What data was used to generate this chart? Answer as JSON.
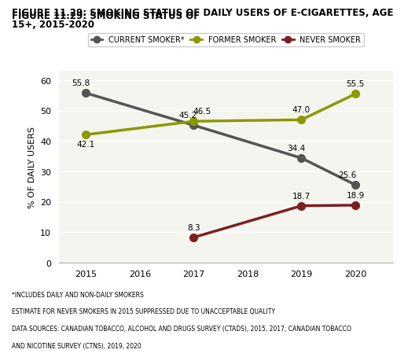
{
  "title_line1": "FIGURE 11.29: SMOKING STATUS OF ",
  "title_underline": "DAILY",
  "title_line2": " USERS OF E-CIGARETTES, AGE",
  "title_line3": "15+, 2015-2020",
  "current_smoker": {
    "x": [
      2015,
      2017,
      2019,
      2020
    ],
    "y": [
      55.8,
      45.2,
      34.4,
      25.6
    ],
    "color": "#555555",
    "label": "CURRENT SMOKER*"
  },
  "former_smoker": {
    "x": [
      2015,
      2017,
      2019,
      2020
    ],
    "y": [
      42.1,
      46.5,
      47.0,
      55.5
    ],
    "color": "#8b9900",
    "label": "FORMER SMOKER"
  },
  "never_smoker": {
    "x": [
      2017,
      2019,
      2020
    ],
    "y": [
      8.3,
      18.7,
      18.9
    ],
    "color": "#7b2020",
    "label": "NEVER SMOKER"
  },
  "xlabel": "",
  "ylabel": "% OF DAILY USERS",
  "xlim": [
    2014.5,
    2020.7
  ],
  "ylim": [
    0,
    63
  ],
  "yticks": [
    0,
    10,
    20,
    30,
    40,
    50,
    60
  ],
  "xticks": [
    2015,
    2016,
    2017,
    2018,
    2019,
    2020
  ],
  "footnote1": "*INCLUDES DAILY AND NON-DAILY SMOKERS",
  "footnote2": "ESTIMATE FOR NEVER SMOKERS IN 2015 SUPPRESSED DUE TO UNACCEPTABLE QUALITY",
  "footnote3": "DATA SOURCES: CANADIAN TOBACCO, ALCOHOL AND DRUGS SURVEY (CTADS), 2015, 2017; CANADIAN TOBACCO",
  "footnote4": "AND NICOTINE SURVEY (CTNS), 2019, 2020",
  "bg_color": "#ffffff",
  "plot_bg_color": "#f5f5f0"
}
